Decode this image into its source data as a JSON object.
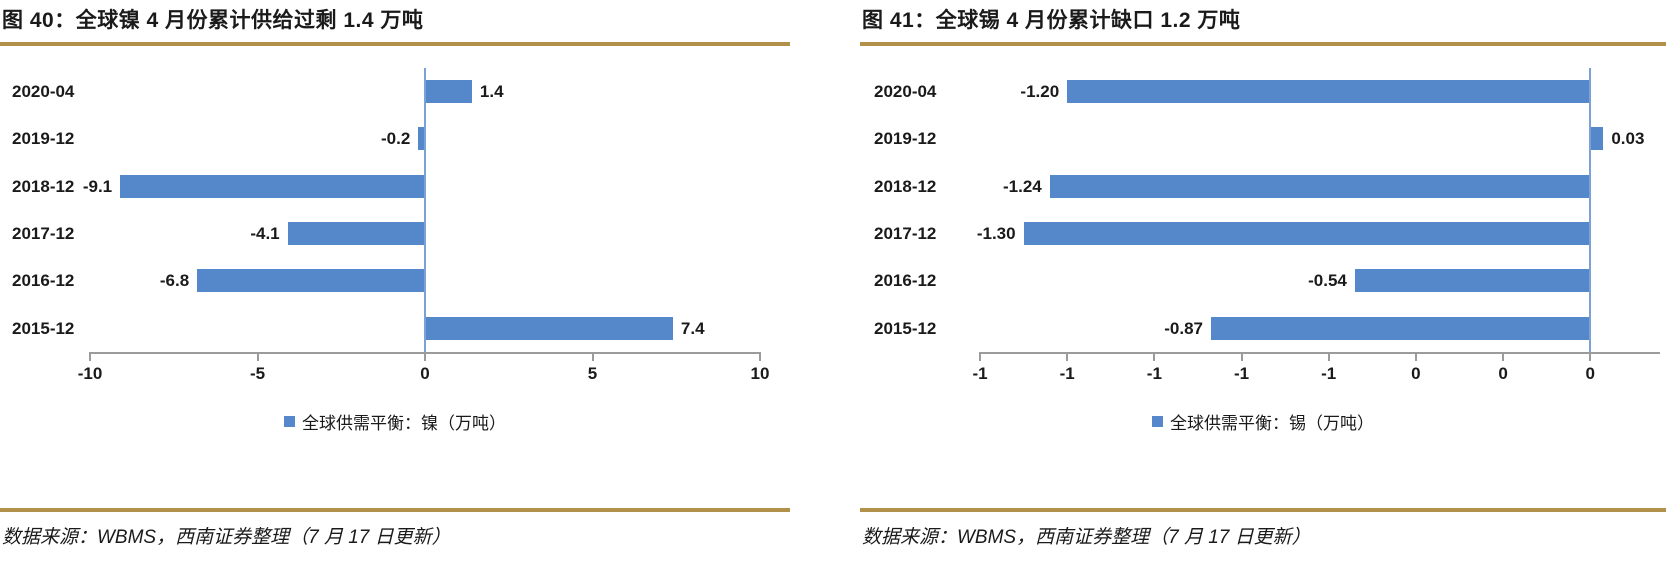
{
  "colors": {
    "bar_blue": "#5588cb",
    "gold_rule": "#b2914a",
    "axis_gray": "#9b9b9b",
    "zero_line_blue": "#7ba2d6",
    "text": "#1a1a1a"
  },
  "chart_data": [
    {
      "type": "bar",
      "orientation": "horizontal",
      "title": "图 40：全球镍 4 月份累计供给过剩 1.4 万吨",
      "categories": [
        "2020-04",
        "2019-12",
        "2018-12",
        "2017-12",
        "2016-12",
        "2015-12"
      ],
      "values": [
        1.4,
        -0.2,
        -9.1,
        -4.1,
        -6.8,
        7.4
      ],
      "value_labels": [
        "1.4",
        "-0.2",
        "-9.1",
        "-4.1",
        "-6.8",
        "7.4"
      ],
      "axis": {
        "min": -10,
        "max": 10,
        "ticks": [
          -10,
          -5,
          0,
          5,
          10
        ],
        "tick_labels": [
          "-10",
          "-5",
          "0",
          "5",
          "10"
        ]
      },
      "grid": false,
      "legend": "全球供需平衡：镍（万吨）",
      "legend_position": "bottom-center",
      "source": "数据来源：WBMS，西南证券整理（7 月 17 日更新）"
    },
    {
      "type": "bar",
      "orientation": "horizontal",
      "title": "图 41：全球锡 4 月份累计缺口 1.2 万吨",
      "categories": [
        "2020-04",
        "2019-12",
        "2018-12",
        "2017-12",
        "2016-12",
        "2015-12"
      ],
      "values": [
        -1.2,
        0.03,
        -1.24,
        -1.3,
        -0.54,
        -0.87
      ],
      "value_labels": [
        "-1.20",
        "0.03",
        "-1.24",
        "-1.30",
        "-0.54",
        "-0.87"
      ],
      "axis": {
        "min": -1.4,
        "max": 0.16,
        "ticks": [
          -1.4,
          -1.2,
          -1.0,
          -0.8,
          -0.6,
          -0.4,
          -0.2,
          0
        ],
        "tick_labels": [
          "-1",
          "-1",
          "-1",
          "-1",
          "-1",
          "0",
          "0",
          "0"
        ]
      },
      "grid": false,
      "legend": "全球供需平衡：锡（万吨）",
      "legend_position": "bottom-center",
      "source": "数据来源：WBMS，西南证券整理（7 月 17 日更新）"
    }
  ]
}
